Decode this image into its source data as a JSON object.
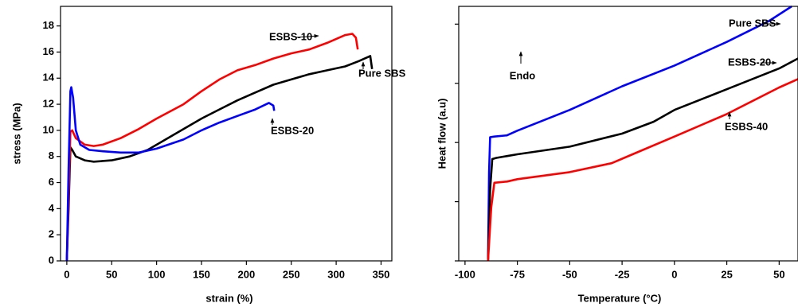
{
  "chart_data": [
    {
      "type": "line",
      "xlabel": "strain (%)",
      "ylabel": "stress (MPa)",
      "xlim": [
        -7,
        362
      ],
      "ylim": [
        0,
        19.5
      ],
      "xticks": [
        0,
        50,
        100,
        150,
        200,
        250,
        300,
        350
      ],
      "yticks": [
        0,
        2,
        4,
        6,
        8,
        10,
        12,
        14,
        16,
        18
      ],
      "ytick_labels": true,
      "series": [
        {
          "name": "Pure SBS",
          "color": "#000000",
          "x": [
            0,
            2,
            4,
            6,
            10,
            20,
            30,
            50,
            70,
            90,
            110,
            130,
            150,
            170,
            190,
            210,
            230,
            250,
            270,
            290,
            310,
            325,
            338,
            340
          ],
          "values": [
            0,
            4,
            8.7,
            8.5,
            8,
            7.7,
            7.6,
            7.7,
            8,
            8.5,
            9.3,
            10.1,
            10.9,
            11.6,
            12.3,
            12.9,
            13.5,
            13.9,
            14.3,
            14.6,
            14.9,
            15.3,
            15.7,
            14.7
          ]
        },
        {
          "name": "ESBS-10",
          "color": "#ff0000",
          "x": [
            0,
            2,
            4,
            6,
            10,
            20,
            30,
            40,
            60,
            80,
            100,
            130,
            150,
            170,
            190,
            210,
            230,
            250,
            270,
            290,
            310,
            318,
            322,
            324
          ],
          "values": [
            0,
            5,
            9.9,
            10,
            9.4,
            8.9,
            8.8,
            8.9,
            9.4,
            10.1,
            10.9,
            12,
            13,
            13.9,
            14.6,
            15,
            15.5,
            15.9,
            16.2,
            16.7,
            17.3,
            17.4,
            17.1,
            16.2
          ]
        },
        {
          "name": "ESBS-20",
          "color": "#0000ff",
          "x": [
            0,
            2,
            4,
            5,
            7,
            10,
            15,
            25,
            40,
            60,
            80,
            100,
            130,
            150,
            170,
            190,
            210,
            225,
            230,
            231
          ],
          "values": [
            0,
            7,
            13,
            13.3,
            12.5,
            10,
            8.9,
            8.5,
            8.4,
            8.3,
            8.3,
            8.6,
            9.3,
            10,
            10.6,
            11.1,
            11.6,
            12.1,
            11.9,
            11.5
          ]
        }
      ]
    },
    {
      "type": "line",
      "xlabel": "Temperature (°C)",
      "ylabel": "Heat flow (a.u)",
      "annotation": "Endo",
      "xlim": [
        -103,
        59
      ],
      "ylim": [
        0,
        4.3
      ],
      "xticks": [
        -100,
        -75,
        -50,
        -25,
        0,
        25,
        50
      ],
      "yticks": [
        0,
        1,
        2,
        3,
        4
      ],
      "ytick_labels": false,
      "series": [
        {
          "name": "Pure SBS",
          "color": "#0000ff",
          "x": [
            -89,
            -88.5,
            -88,
            -86,
            -80,
            -75,
            -50,
            -25,
            0,
            25,
            45,
            56
          ],
          "values": [
            0,
            1.5,
            2.09,
            2.1,
            2.12,
            2.2,
            2.55,
            2.95,
            3.3,
            3.7,
            4.05,
            4.3
          ]
        },
        {
          "name": "ESBS-20",
          "color": "#000000",
          "x": [
            -89,
            -88,
            -87,
            -85,
            -75,
            -50,
            -25,
            -10,
            0,
            25,
            50,
            59
          ],
          "values": [
            0,
            1.2,
            1.72,
            1.74,
            1.8,
            1.93,
            2.15,
            2.35,
            2.55,
            2.9,
            3.25,
            3.42
          ]
        },
        {
          "name": "ESBS-40",
          "color": "#ff0000",
          "x": [
            -89,
            -87.5,
            -86,
            -80,
            -75,
            -50,
            -30,
            -20,
            0,
            25,
            50,
            59
          ],
          "values": [
            0,
            0.9,
            1.32,
            1.34,
            1.38,
            1.5,
            1.65,
            1.8,
            2.1,
            2.48,
            2.93,
            3.07
          ]
        }
      ]
    }
  ]
}
